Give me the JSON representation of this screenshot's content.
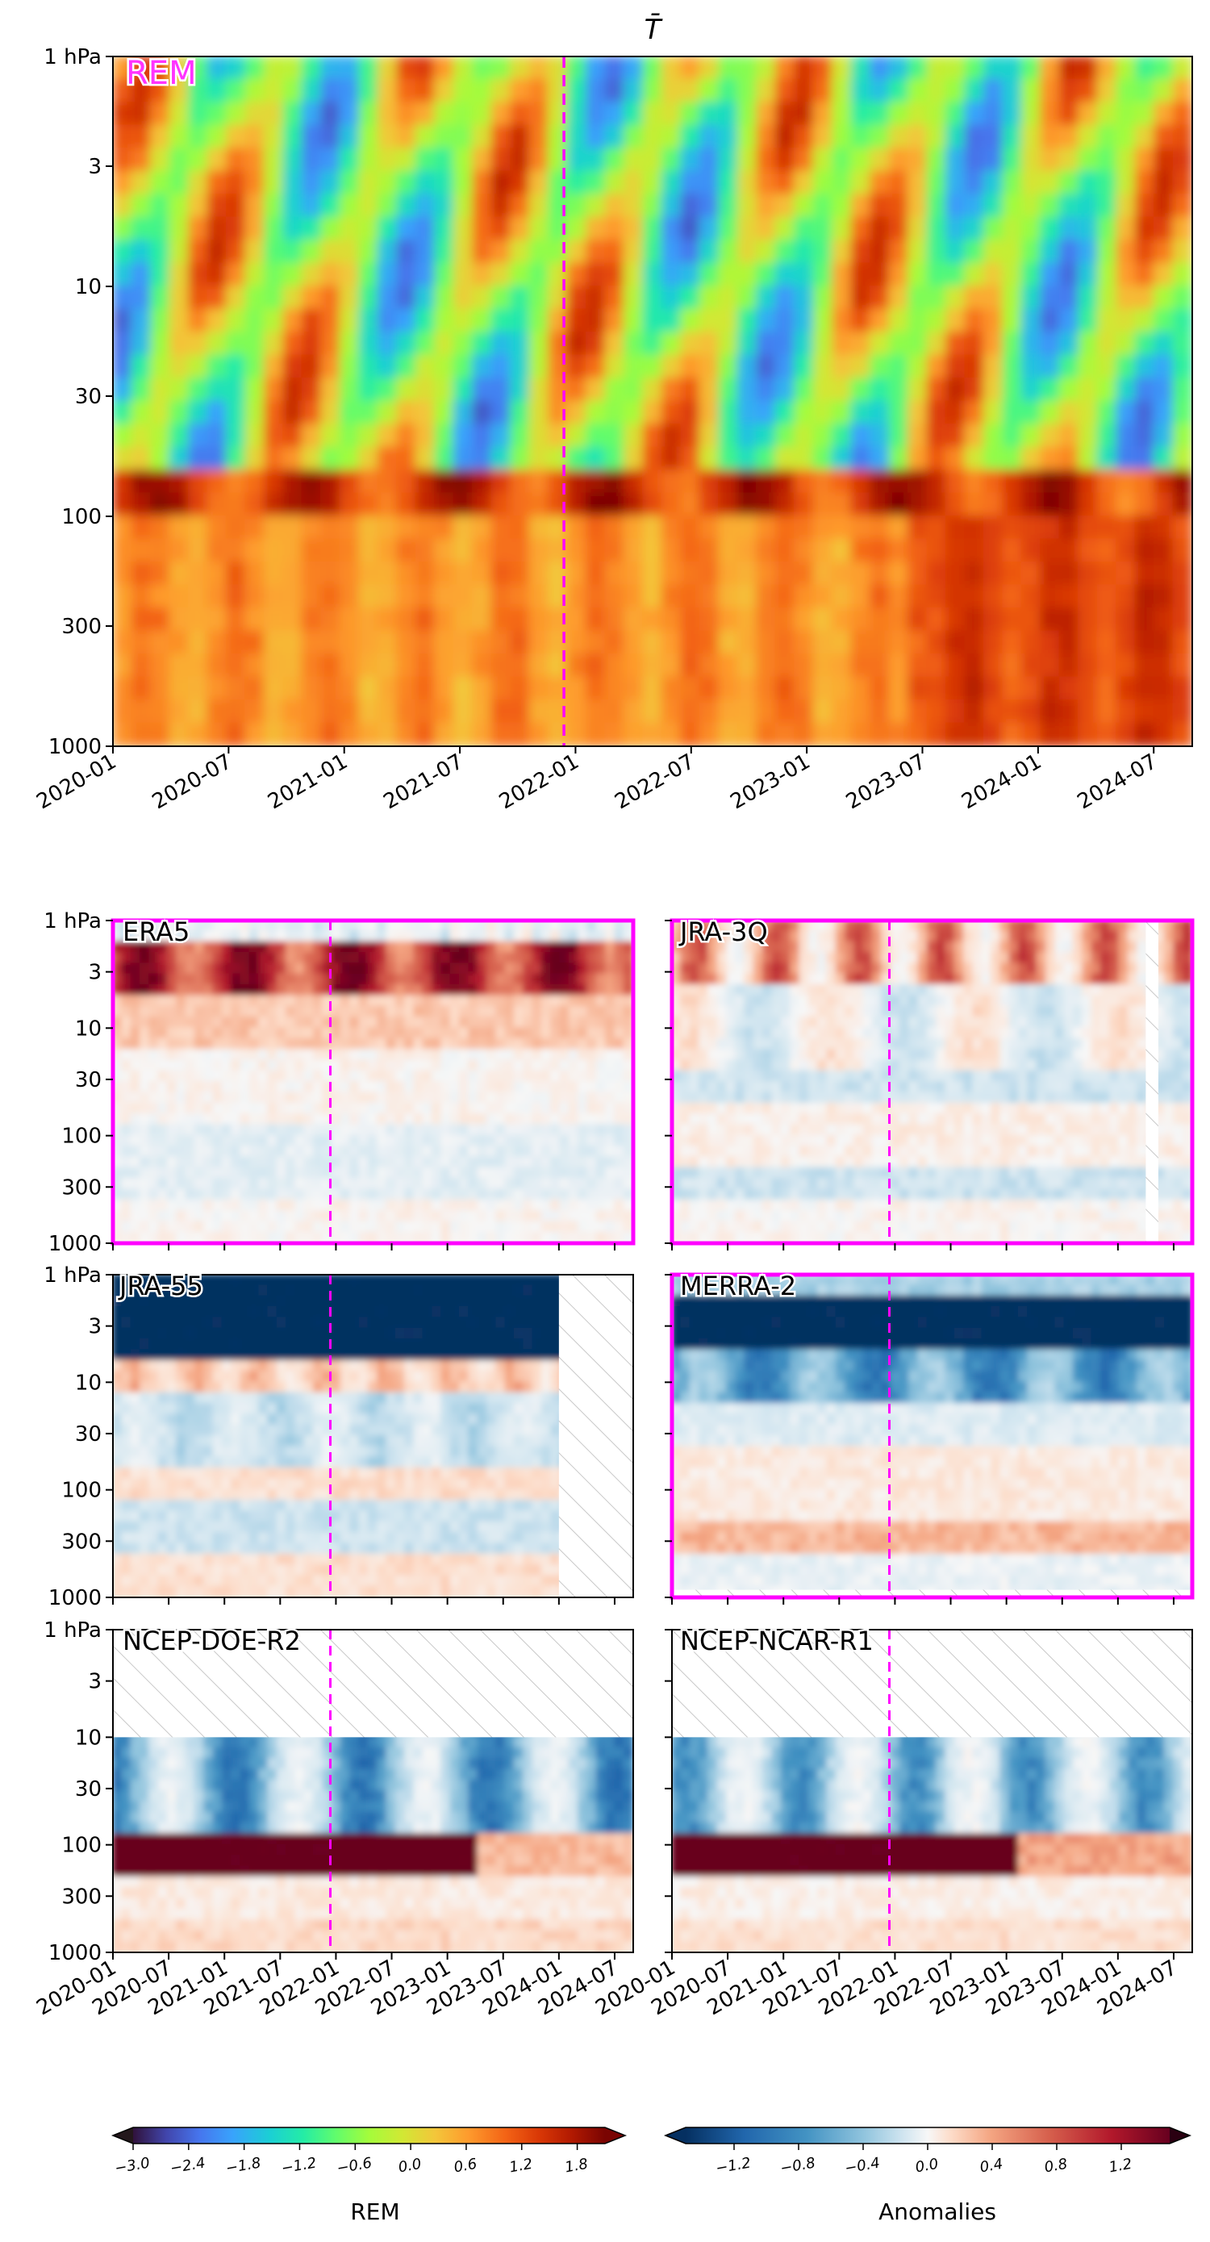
{
  "figure_title": "T̄",
  "colors": {
    "frame_highlight": "#ff00ff",
    "marker_line": "#ff00ff",
    "rem_label": "#ff33ff"
  },
  "chart_data": [
    {
      "id": "rem",
      "type": "heatmap",
      "label": "REM",
      "colormap": "turbo",
      "x_range": [
        "2020-01",
        "2024-09"
      ],
      "y_scale": "log",
      "y_range_hpa": [
        1000,
        1
      ],
      "y_ticks": [
        "1 hPa",
        "3",
        "10",
        "30",
        "100",
        "300",
        "1000"
      ],
      "x_ticks": [
        "2020-01",
        "2020-07",
        "2021-01",
        "2021-07",
        "2022-01",
        "2022-07",
        "2023-01",
        "2023-07",
        "2024-01",
        "2024-07"
      ],
      "marker_date": "2021-12",
      "highlighted": false
    },
    {
      "id": "era5",
      "type": "heatmap",
      "label": "ERA5",
      "colormap": "RdBu_r",
      "y_ticks": [
        "1 hPa",
        "3",
        "10",
        "30",
        "100",
        "300",
        "1000"
      ],
      "marker_date": "2021-12",
      "highlighted": true,
      "missing": []
    },
    {
      "id": "jra3q",
      "type": "heatmap",
      "label": "JRA-3Q",
      "colormap": "RdBu_r",
      "marker_date": "2021-12",
      "highlighted": true,
      "missing": [
        {
          "from": "2024-04",
          "to": "2024-05",
          "p_top": 1,
          "p_bot": 1000
        }
      ]
    },
    {
      "id": "jra55",
      "type": "heatmap",
      "label": "JRA-55",
      "colormap": "RdBu_r",
      "y_ticks": [
        "1 hPa",
        "3",
        "10",
        "30",
        "100",
        "300",
        "1000"
      ],
      "marker_date": "2021-12",
      "highlighted": false,
      "missing": [
        {
          "from": "2024-01",
          "to": "2024-09",
          "p_top": 1,
          "p_bot": 1000
        }
      ]
    },
    {
      "id": "merra2",
      "type": "heatmap",
      "label": "MERRA-2",
      "colormap": "RdBu_r",
      "marker_date": "2021-12",
      "highlighted": true,
      "missing": [
        {
          "from": "2020-01",
          "to": "2024-09",
          "p_top": 850,
          "p_bot": 1000
        }
      ]
    },
    {
      "id": "ncepdoe",
      "type": "heatmap",
      "label": "NCEP-DOE-R2",
      "colormap": "RdBu_r",
      "y_ticks": [
        "1 hPa",
        "3",
        "10",
        "30",
        "100",
        "300",
        "1000"
      ],
      "x_ticks": [
        "2020-01",
        "2020-07",
        "2021-01",
        "2021-07",
        "2022-01",
        "2022-07",
        "2023-01",
        "2023-07",
        "2024-01",
        "2024-07"
      ],
      "marker_date": "2021-12",
      "highlighted": false,
      "missing": [
        {
          "from": "2020-01",
          "to": "2024-09",
          "p_top": 1,
          "p_bot": 10
        }
      ]
    },
    {
      "id": "ncepncar",
      "type": "heatmap",
      "label": "NCEP-NCAR-R1",
      "colormap": "RdBu_r",
      "x_ticks": [
        "2020-01",
        "2020-07",
        "2021-01",
        "2021-07",
        "2022-01",
        "2022-07",
        "2023-01",
        "2023-07",
        "2024-01",
        "2024-07"
      ],
      "marker_date": "2021-12",
      "highlighted": false,
      "missing": [
        {
          "from": "2020-01",
          "to": "2024-09",
          "p_top": 1,
          "p_bot": 10
        }
      ]
    }
  ],
  "colorbars": [
    {
      "id": "rem",
      "label": "REM",
      "colormap": "turbo",
      "range": [
        -3.0,
        2.1
      ],
      "extend": "both",
      "ticks": [
        "−3.0",
        "−2.4",
        "−1.8",
        "−1.2",
        "−0.6",
        "0.0",
        "0.6",
        "1.2",
        "1.8"
      ],
      "tick_values": [
        -3.0,
        -2.4,
        -1.8,
        -1.2,
        -0.6,
        0.0,
        0.6,
        1.2,
        1.8
      ]
    },
    {
      "id": "anom",
      "label": "Anomalies",
      "colormap": "RdBu_r",
      "range": [
        -1.5,
        1.5
      ],
      "extend": "both",
      "ticks": [
        "−1.2",
        "−0.8",
        "−0.4",
        "0.0",
        "0.4",
        "0.8",
        "1.2"
      ],
      "tick_values": [
        -1.2,
        -0.8,
        -0.4,
        0.0,
        0.4,
        0.8,
        1.2
      ]
    }
  ]
}
